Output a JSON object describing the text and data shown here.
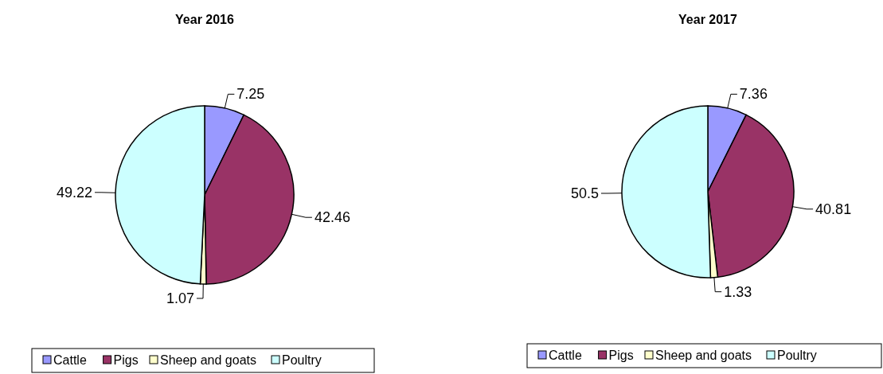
{
  "chart_data": [
    {
      "type": "pie",
      "title": "Year 2016",
      "categories": [
        "Cattle",
        "Pigs",
        "Sheep and goats",
        "Poultry"
      ],
      "values": [
        7.25,
        42.46,
        1.07,
        49.22
      ],
      "colors": [
        "#9999ff",
        "#993366",
        "#ffffcc",
        "#ccffff"
      ],
      "data_labels": true,
      "legend": "bottom"
    },
    {
      "type": "pie",
      "title": "Year 2017",
      "categories": [
        "Cattle",
        "Pigs",
        "Sheep and goats",
        "Poultry"
      ],
      "values": [
        7.36,
        40.81,
        1.33,
        50.5
      ],
      "colors": [
        "#9999ff",
        "#993366",
        "#ffffcc",
        "#ccffff"
      ],
      "data_labels": true,
      "legend": "bottom"
    }
  ]
}
